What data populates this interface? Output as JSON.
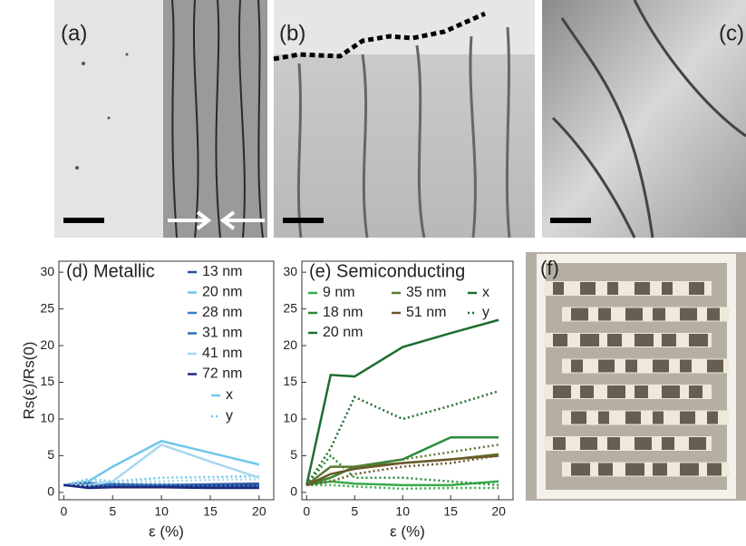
{
  "panels": {
    "a": "(a)",
    "b": "(b)",
    "c": "(c)",
    "f": "(f)"
  },
  "chart_data": [
    {
      "type": "line",
      "title": "(d) Metallic",
      "xlabel": "ε (%)",
      "ylabel": "Rs(ε)/Rs(0)",
      "x": [
        0,
        2.5,
        5,
        10,
        15,
        20
      ],
      "xlim": [
        -0.5,
        21.5
      ],
      "xticks": [
        0,
        5,
        10,
        15,
        20
      ],
      "ylim": [
        -1,
        31.5
      ],
      "yticks": [
        0,
        5,
        10,
        15,
        20,
        25,
        30
      ],
      "direction_legend": [
        "x",
        "y"
      ],
      "series": [
        {
          "name": "13 nm",
          "color": "#2b4f9e",
          "values": [
            1,
            1.2,
            1,
            1,
            1.1,
            1.2
          ],
          "values_y": [
            1,
            1.1,
            1,
            0.9,
            1,
            1
          ]
        },
        {
          "name": "20 nm",
          "color": "#6ec6ea",
          "values": [
            1,
            1.5,
            3.5,
            7,
            5.4,
            3.8
          ],
          "values_y": [
            1,
            1.8,
            1.5,
            2,
            2.1,
            2.2
          ]
        },
        {
          "name": "28 nm",
          "color": "#3a7cc4",
          "values": [
            1,
            0.8,
            1,
            0.8,
            0.8,
            0.8
          ],
          "values_y": [
            1,
            1,
            1.2,
            1,
            0.9,
            0.9
          ]
        },
        {
          "name": "31 nm",
          "color": "#2f6db5",
          "values": [
            1,
            1.3,
            1.1,
            1,
            1,
            1
          ],
          "values_y": [
            1,
            1.2,
            1.1,
            1.1,
            1,
            1
          ]
        },
        {
          "name": "41 nm",
          "color": "#a8d8ef",
          "values": [
            1,
            1,
            1.5,
            6.5,
            4.2,
            2
          ],
          "values_y": [
            1,
            1.5,
            1.5,
            1.5,
            1.7,
            1.8
          ]
        },
        {
          "name": "72 nm",
          "color": "#1d2a7a",
          "values": [
            1,
            0.6,
            0.7,
            0.7,
            0.6,
            0.6
          ],
          "values_y": [
            1,
            0.9,
            0.8,
            0.8,
            0.9,
            0.9
          ]
        }
      ]
    },
    {
      "type": "line",
      "title": "(e) Semiconducting",
      "xlabel": "ε (%)",
      "x": [
        0,
        2.5,
        5,
        10,
        15,
        20
      ],
      "xlim": [
        -0.5,
        21.5
      ],
      "xticks": [
        0,
        5,
        10,
        15,
        20
      ],
      "ylim": [
        -1,
        31.5
      ],
      "yticks": [
        0,
        5,
        10,
        15,
        20,
        25,
        30
      ],
      "direction_legend": [
        "x",
        "y"
      ],
      "series": [
        {
          "name": "9 nm",
          "color": "#3aaa4a",
          "values": [
            1,
            1.5,
            1.2,
            1,
            1,
            1.5
          ],
          "values_y": [
            1,
            1,
            0.8,
            0.5,
            0.6,
            0.6
          ]
        },
        {
          "name": "18 nm",
          "color": "#2a8c3a",
          "values": [
            1,
            2,
            3.5,
            4.5,
            7.5,
            7.5
          ],
          "values_y": [
            1,
            5,
            2,
            2,
            1.5,
            1
          ]
        },
        {
          "name": "20 nm",
          "color": "#1e6e2e",
          "values": [
            1,
            16,
            15.8,
            19.8,
            21.7,
            23.5
          ],
          "values_y": [
            1,
            6,
            13,
            10,
            11.8,
            13.8
          ]
        },
        {
          "name": "35 nm",
          "color": "#5a7a30",
          "values": [
            1,
            3.5,
            3.5,
            4,
            4.5,
            5.2
          ],
          "values_y": [
            1,
            2,
            3.5,
            4.5,
            5.5,
            6.5
          ]
        },
        {
          "name": "51 nm",
          "color": "#6b5a2a",
          "values": [
            1,
            2.5,
            3.2,
            4,
            4.5,
            5
          ],
          "values_y": [
            1,
            1.5,
            2.5,
            3.5,
            4,
            5
          ]
        }
      ]
    }
  ]
}
